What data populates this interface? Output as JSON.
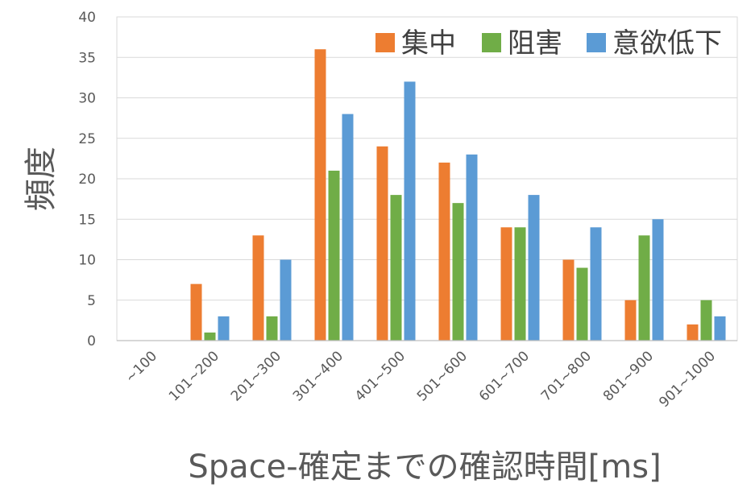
{
  "chart_data": {
    "type": "bar",
    "categories": [
      "~100",
      "101~200",
      "201~300",
      "301~400",
      "401~500",
      "501~600",
      "601~700",
      "701~800",
      "801~900",
      "901~1000"
    ],
    "series": [
      {
        "name": "集中",
        "color": "#ED7D31",
        "values": [
          0,
          7,
          13,
          36,
          24,
          22,
          14,
          10,
          5,
          2
        ]
      },
      {
        "name": "阻害",
        "color": "#70AD47",
        "values": [
          0,
          1,
          3,
          21,
          18,
          17,
          14,
          9,
          13,
          5
        ]
      },
      {
        "name": "意欲低下",
        "color": "#5B9BD5",
        "values": [
          0,
          3,
          10,
          28,
          32,
          23,
          18,
          14,
          15,
          3
        ]
      }
    ],
    "xlabel": "Space-確定までの確認時間[ms]",
    "ylabel": "頻度",
    "ylim": [
      0,
      40
    ],
    "yticks": [
      0,
      5,
      10,
      15,
      20,
      25,
      30,
      35,
      40
    ],
    "grid": true,
    "legend_position": "top-right"
  }
}
